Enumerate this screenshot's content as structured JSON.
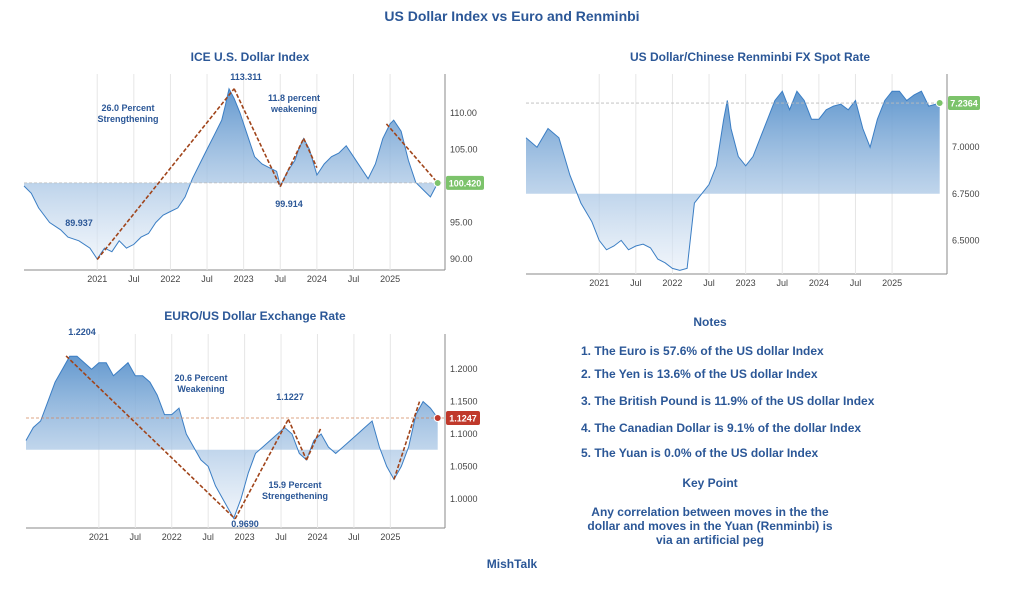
{
  "title": "US Dollar Index vs Euro and Renminbi",
  "footer": "MishTalk",
  "notes": {
    "title": "Notes",
    "items": [
      "1. The Euro is 57.6% of the US dollar Index",
      "2. The Yen is 13.6% of the US dollar Index",
      "3. The British Pound is 11.9% of the US dollar Index",
      "4. The Canadian Dollar is 9.1% of the dollar Index",
      "5. The Yuan is 0.0% of the US dollar Index"
    ],
    "key_point_title": "Key Point",
    "key_point_text": "Any correlation between moves in the the dollar and moves in the Yuan (Renminbi) is via an artificial peg"
  },
  "colors": {
    "line": "#3b7ec4",
    "fill_top": "#5b93cc",
    "fill_bottom": "#e6eef8",
    "trend": "#a0441a",
    "label_green": "#7cc36b",
    "label_red": "#c0392b"
  },
  "chart_data": [
    {
      "type": "area",
      "title": "ICE U.S. Dollar Index",
      "x_ticks": [
        "2021",
        "Jul",
        "2022",
        "Jul",
        "2023",
        "Jul",
        "2024",
        "Jul",
        "2025"
      ],
      "y_ticks": [
        "90.00",
        "95.00",
        "100.00",
        "105.00",
        "110.00"
      ],
      "ylim": [
        88.5,
        114.5
      ],
      "xlim": [
        2020.0,
        2025.75
      ],
      "reference_value": 100.42,
      "last_label": "100.420",
      "x": [
        2020.0,
        2020.1,
        2020.2,
        2020.35,
        2020.5,
        2020.6,
        2020.75,
        2020.9,
        2021.0,
        2021.1,
        2021.2,
        2021.3,
        2021.4,
        2021.5,
        2021.6,
        2021.7,
        2021.8,
        2021.9,
        2022.0,
        2022.1,
        2022.2,
        2022.3,
        2022.4,
        2022.5,
        2022.6,
        2022.7,
        2022.75,
        2022.8,
        2022.87,
        2022.95,
        2023.05,
        2023.15,
        2023.25,
        2023.35,
        2023.45,
        2023.5,
        2023.6,
        2023.7,
        2023.75,
        2023.82,
        2023.9,
        2024.0,
        2024.1,
        2024.2,
        2024.3,
        2024.4,
        2024.5,
        2024.6,
        2024.7,
        2024.8,
        2024.9,
        2025.0,
        2025.05,
        2025.15,
        2025.25,
        2025.35,
        2025.45,
        2025.55,
        2025.65
      ],
      "y": [
        100.0,
        99.0,
        97.0,
        95.0,
        94.0,
        93.0,
        92.5,
        91.5,
        90.0,
        91.5,
        91.0,
        92.5,
        91.5,
        92.0,
        93.0,
        93.5,
        95.0,
        96.0,
        96.5,
        97.0,
        98.5,
        101.0,
        103.0,
        105.0,
        107.0,
        109.0,
        111.0,
        113.3,
        112.0,
        110.0,
        107.0,
        104.0,
        103.0,
        102.5,
        102.0,
        100.0,
        102.0,
        103.5,
        105.0,
        106.5,
        105.0,
        101.5,
        103.0,
        104.0,
        104.5,
        105.5,
        104.0,
        102.5,
        101.0,
        103.0,
        106.5,
        108.5,
        109.0,
        107.5,
        103.5,
        100.5,
        99.5,
        98.5,
        100.4
      ],
      "annotations": [
        "89.937",
        "113.311",
        "99.914",
        "26.0 Percent",
        "Strengthening",
        "11.8 percent",
        "weakening"
      ]
    },
    {
      "type": "area",
      "title": "US Dollar/Chinese Renminbi FX Spot Rate",
      "x_ticks": [
        "2021",
        "Jul",
        "2022",
        "Jul",
        "2023",
        "Jul",
        "2024",
        "Jul",
        "2025"
      ],
      "y_ticks": [
        "6.5000",
        "6.7500",
        "7.0000"
      ],
      "ylim": [
        6.32,
        7.36
      ],
      "xlim": [
        2020.0,
        2025.75
      ],
      "reference_value": 7.2364,
      "last_label": "7.2364",
      "x": [
        2020.0,
        2020.15,
        2020.3,
        2020.45,
        2020.6,
        2020.75,
        2020.9,
        2021.0,
        2021.1,
        2021.2,
        2021.3,
        2021.4,
        2021.5,
        2021.6,
        2021.7,
        2021.8,
        2021.9,
        2022.0,
        2022.1,
        2022.2,
        2022.3,
        2022.4,
        2022.5,
        2022.6,
        2022.7,
        2022.75,
        2022.8,
        2022.9,
        2023.0,
        2023.1,
        2023.2,
        2023.3,
        2023.4,
        2023.5,
        2023.6,
        2023.7,
        2023.8,
        2023.9,
        2024.0,
        2024.1,
        2024.2,
        2024.3,
        2024.4,
        2024.5,
        2024.6,
        2024.7,
        2024.8,
        2024.9,
        2025.0,
        2025.1,
        2025.2,
        2025.3,
        2025.4,
        2025.5,
        2025.65
      ],
      "y": [
        7.05,
        7.0,
        7.1,
        7.05,
        6.85,
        6.7,
        6.6,
        6.5,
        6.45,
        6.47,
        6.5,
        6.45,
        6.47,
        6.48,
        6.46,
        6.4,
        6.38,
        6.35,
        6.34,
        6.35,
        6.7,
        6.75,
        6.8,
        6.9,
        7.15,
        7.25,
        7.1,
        6.95,
        6.9,
        6.95,
        7.05,
        7.15,
        7.25,
        7.3,
        7.2,
        7.3,
        7.25,
        7.15,
        7.15,
        7.2,
        7.22,
        7.23,
        7.2,
        7.25,
        7.1,
        7.0,
        7.15,
        7.25,
        7.3,
        7.3,
        7.25,
        7.28,
        7.3,
        7.22,
        7.2364
      ],
      "annotations": []
    },
    {
      "type": "area",
      "title": "EURO/US Dollar Exchange Rate",
      "x_ticks": [
        "2021",
        "Jul",
        "2022",
        "Jul",
        "2023",
        "Jul",
        "2024",
        "Jul",
        "2025"
      ],
      "y_ticks": [
        "1.0000",
        "1.0500",
        "1.1000",
        "1.1500",
        "1.2000"
      ],
      "ylim": [
        0.955,
        1.245
      ],
      "xlim": [
        2020.0,
        2025.75
      ],
      "reference_value": 1.1247,
      "last_label": "1.1247",
      "x": [
        2020.0,
        2020.1,
        2020.2,
        2020.3,
        2020.4,
        2020.5,
        2020.6,
        2020.7,
        2020.8,
        2020.9,
        2021.0,
        2021.1,
        2021.2,
        2021.3,
        2021.4,
        2021.5,
        2021.6,
        2021.7,
        2021.8,
        2021.9,
        2022.0,
        2022.1,
        2022.2,
        2022.3,
        2022.4,
        2022.5,
        2022.6,
        2022.7,
        2022.8,
        2022.85,
        2022.95,
        2023.05,
        2023.15,
        2023.25,
        2023.35,
        2023.45,
        2023.55,
        2023.65,
        2023.75,
        2023.85,
        2023.95,
        2024.05,
        2024.15,
        2024.25,
        2024.35,
        2024.45,
        2024.55,
        2024.65,
        2024.75,
        2024.85,
        2024.95,
        2025.05,
        2025.15,
        2025.25,
        2025.35,
        2025.45,
        2025.55,
        2025.65
      ],
      "y": [
        1.09,
        1.11,
        1.12,
        1.15,
        1.18,
        1.2,
        1.22,
        1.22,
        1.21,
        1.2,
        1.21,
        1.21,
        1.19,
        1.2,
        1.21,
        1.19,
        1.19,
        1.18,
        1.16,
        1.13,
        1.13,
        1.14,
        1.1,
        1.08,
        1.06,
        1.05,
        1.02,
        1.0,
        0.98,
        0.97,
        1.0,
        1.04,
        1.07,
        1.08,
        1.09,
        1.1,
        1.11,
        1.1,
        1.07,
        1.06,
        1.09,
        1.1,
        1.08,
        1.07,
        1.08,
        1.09,
        1.1,
        1.11,
        1.12,
        1.08,
        1.05,
        1.03,
        1.05,
        1.08,
        1.13,
        1.15,
        1.14,
        1.1247
      ],
      "annotations": [
        "1.2204",
        "0.9690",
        "1.1227",
        "20.6 Percent",
        "Weakening",
        "15.9 Percent",
        "Strengethening"
      ]
    }
  ]
}
